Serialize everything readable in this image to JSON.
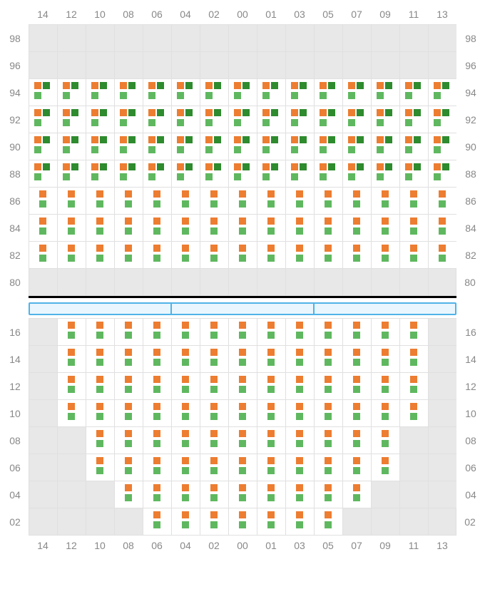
{
  "colors": {
    "orange": "#ed7d31",
    "green": "#5fb85f",
    "darkgreen": "#2e8b2e",
    "inactive_bg": "#e8e8e8",
    "active_bg": "#ffffff",
    "grid": "#e0e0e0",
    "divider_border": "#4fb3e8",
    "divider_fill": "#eaf6fd"
  },
  "columns": [
    "14",
    "12",
    "10",
    "08",
    "06",
    "04",
    "02",
    "00",
    "01",
    "03",
    "05",
    "07",
    "09",
    "11",
    "13"
  ],
  "upper": {
    "row_labels": [
      "98",
      "96",
      "94",
      "92",
      "90",
      "88",
      "86",
      "84",
      "82",
      "80"
    ],
    "cells": [
      {
        "r": 0,
        "active": [],
        "markers": {}
      },
      {
        "r": 1,
        "active": [],
        "markers": {}
      },
      {
        "r": 2,
        "active": [
          0,
          1,
          2,
          3,
          4,
          5,
          6,
          7,
          8,
          9,
          10,
          11,
          12,
          13,
          14
        ],
        "markers": {
          "type": "A",
          "cols": [
            0,
            1,
            2,
            3,
            4,
            5,
            6,
            7,
            8,
            9,
            10,
            11,
            12,
            13,
            14
          ]
        }
      },
      {
        "r": 3,
        "active": [
          0,
          1,
          2,
          3,
          4,
          5,
          6,
          7,
          8,
          9,
          10,
          11,
          12,
          13,
          14
        ],
        "markers": {
          "type": "A",
          "cols": [
            0,
            1,
            2,
            3,
            4,
            5,
            6,
            7,
            8,
            9,
            10,
            11,
            12,
            13,
            14
          ]
        }
      },
      {
        "r": 4,
        "active": [
          0,
          1,
          2,
          3,
          4,
          5,
          6,
          7,
          8,
          9,
          10,
          11,
          12,
          13,
          14
        ],
        "markers": {
          "type": "A",
          "cols": [
            0,
            1,
            2,
            3,
            4,
            5,
            6,
            7,
            8,
            9,
            10,
            11,
            12,
            13,
            14
          ]
        }
      },
      {
        "r": 5,
        "active": [
          0,
          1,
          2,
          3,
          4,
          5,
          6,
          7,
          8,
          9,
          10,
          11,
          12,
          13,
          14
        ],
        "markers": {
          "type": "A",
          "cols": [
            0,
            1,
            2,
            3,
            4,
            5,
            6,
            7,
            8,
            9,
            10,
            11,
            12,
            13,
            14
          ]
        }
      },
      {
        "r": 6,
        "active": [
          0,
          1,
          2,
          3,
          4,
          5,
          6,
          7,
          8,
          9,
          10,
          11,
          12,
          13,
          14
        ],
        "markers": {
          "type": "B",
          "cols": [
            0,
            1,
            2,
            3,
            4,
            5,
            6,
            7,
            8,
            9,
            10,
            11,
            12,
            13,
            14
          ]
        }
      },
      {
        "r": 7,
        "active": [
          0,
          1,
          2,
          3,
          4,
          5,
          6,
          7,
          8,
          9,
          10,
          11,
          12,
          13,
          14
        ],
        "markers": {
          "type": "B",
          "cols": [
            0,
            1,
            2,
            3,
            4,
            5,
            6,
            7,
            8,
            9,
            10,
            11,
            12,
            13,
            14
          ]
        }
      },
      {
        "r": 8,
        "active": [
          0,
          1,
          2,
          3,
          4,
          5,
          6,
          7,
          8,
          9,
          10,
          11,
          12,
          13,
          14
        ],
        "markers": {
          "type": "B",
          "cols": [
            0,
            1,
            2,
            3,
            4,
            5,
            6,
            7,
            8,
            9,
            10,
            11,
            12,
            13,
            14
          ]
        }
      },
      {
        "r": 9,
        "active": [],
        "markers": {}
      }
    ]
  },
  "divider_segments": 3,
  "lower": {
    "row_labels": [
      "16",
      "14",
      "12",
      "10",
      "08",
      "06",
      "04",
      "02"
    ],
    "cells": [
      {
        "r": 0,
        "active": [
          1,
          2,
          3,
          4,
          5,
          6,
          7,
          8,
          9,
          10,
          11,
          12,
          13
        ],
        "markers": {
          "type": "B",
          "cols": [
            1,
            2,
            3,
            4,
            5,
            6,
            7,
            8,
            9,
            10,
            11,
            12,
            13
          ]
        }
      },
      {
        "r": 1,
        "active": [
          1,
          2,
          3,
          4,
          5,
          6,
          7,
          8,
          9,
          10,
          11,
          12,
          13
        ],
        "markers": {
          "type": "B",
          "cols": [
            1,
            2,
            3,
            4,
            5,
            6,
            7,
            8,
            9,
            10,
            11,
            12,
            13
          ]
        }
      },
      {
        "r": 2,
        "active": [
          1,
          2,
          3,
          4,
          5,
          6,
          7,
          8,
          9,
          10,
          11,
          12,
          13
        ],
        "markers": {
          "type": "B",
          "cols": [
            1,
            2,
            3,
            4,
            5,
            6,
            7,
            8,
            9,
            10,
            11,
            12,
            13
          ]
        }
      },
      {
        "r": 3,
        "active": [
          1,
          2,
          3,
          4,
          5,
          6,
          7,
          8,
          9,
          10,
          11,
          12,
          13
        ],
        "markers": {
          "type": "B",
          "cols": [
            1,
            2,
            3,
            4,
            5,
            6,
            7,
            8,
            9,
            10,
            11,
            12,
            13
          ]
        }
      },
      {
        "r": 4,
        "active": [
          2,
          3,
          4,
          5,
          6,
          7,
          8,
          9,
          10,
          11,
          12
        ],
        "markers": {
          "type": "B",
          "cols": [
            2,
            3,
            4,
            5,
            6,
            7,
            8,
            9,
            10,
            11,
            12
          ]
        }
      },
      {
        "r": 5,
        "active": [
          2,
          3,
          4,
          5,
          6,
          7,
          8,
          9,
          10,
          11,
          12
        ],
        "markers": {
          "type": "B",
          "cols": [
            2,
            3,
            4,
            5,
            6,
            7,
            8,
            9,
            10,
            11,
            12
          ]
        }
      },
      {
        "r": 6,
        "active": [
          3,
          4,
          5,
          6,
          7,
          8,
          9,
          10,
          11
        ],
        "markers": {
          "type": "B",
          "cols": [
            3,
            4,
            5,
            6,
            7,
            8,
            9,
            10,
            11
          ]
        }
      },
      {
        "r": 7,
        "active": [
          4,
          5,
          6,
          7,
          8,
          9,
          10
        ],
        "markers": {
          "type": "B",
          "cols": [
            4,
            5,
            6,
            7,
            8,
            9,
            10
          ]
        }
      }
    ]
  }
}
